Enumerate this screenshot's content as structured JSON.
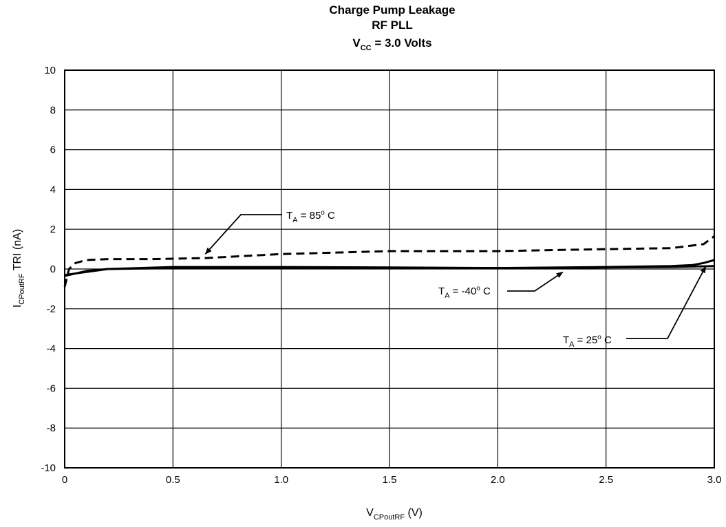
{
  "chart_data": {
    "type": "line",
    "title": [
      "Charge Pump Leakage",
      "RF PLL"
    ],
    "title_vcc": {
      "main": "V",
      "sub": "CC",
      "rest": " = 3.0 Volts"
    },
    "xlabel": {
      "main": "V",
      "sub": "CPoutRF",
      "rest": " (V)"
    },
    "ylabel": {
      "main": "I",
      "sub": "CPoutRF",
      "rest": " TRI (nA)"
    },
    "xlim": [
      0,
      3.0
    ],
    "ylim": [
      -10,
      10
    ],
    "x_ticks": [
      0,
      0.5,
      1.0,
      1.5,
      2.0,
      2.5,
      3.0
    ],
    "x_tick_labels": [
      "0",
      "0.5",
      "1.0",
      "1.5",
      "2.0",
      "2.5",
      "3.0"
    ],
    "y_ticks": [
      -10,
      -8,
      -6,
      -4,
      -2,
      0,
      2,
      4,
      6,
      8,
      10
    ],
    "y_tick_labels": [
      "-10",
      "-8",
      "-6",
      "-4",
      "-2",
      "0",
      "2",
      "4",
      "6",
      "8",
      "10"
    ],
    "grid": true,
    "series": [
      {
        "key": "85",
        "style": "dashed",
        "x": [
          0.0,
          0.02,
          0.05,
          0.1,
          0.2,
          0.4,
          0.65,
          1.0,
          1.5,
          2.0,
          2.5,
          2.8,
          2.95,
          3.0
        ],
        "y": [
          -0.9,
          0.0,
          0.3,
          0.45,
          0.5,
          0.5,
          0.55,
          0.75,
          0.9,
          0.9,
          1.0,
          1.05,
          1.25,
          1.65
        ]
      },
      {
        "key": "-40",
        "style": "solid",
        "x": [
          0.0,
          0.1,
          0.2,
          0.5,
          1.0,
          1.5,
          2.0,
          2.3,
          2.5,
          2.8,
          3.0
        ],
        "y": [
          -0.3,
          -0.15,
          0.0,
          0.1,
          0.1,
          0.08,
          0.05,
          0.05,
          0.08,
          0.1,
          0.15
        ]
      },
      {
        "key": "25",
        "style": "solid",
        "x": [
          0.0,
          0.1,
          0.2,
          0.5,
          1.0,
          1.5,
          2.0,
          2.5,
          2.8,
          2.9,
          2.95,
          3.0
        ],
        "y": [
          -0.35,
          -0.1,
          0.0,
          0.05,
          0.05,
          0.05,
          0.05,
          0.1,
          0.15,
          0.2,
          0.3,
          0.45
        ]
      }
    ],
    "annotations": [
      {
        "series": "85",
        "text_main": "T",
        "text_sub": "A",
        "text_rest": " = 85",
        "text_deg": "o",
        "text_unit": " C"
      },
      {
        "series": "-40",
        "text_main": "T",
        "text_sub": "A",
        "text_rest": " = -40",
        "text_deg": "o",
        "text_unit": " C"
      },
      {
        "series": "25",
        "text_main": "T",
        "text_sub": "A",
        "text_rest": " = 25",
        "text_deg": "o",
        "text_unit": " C"
      }
    ]
  }
}
